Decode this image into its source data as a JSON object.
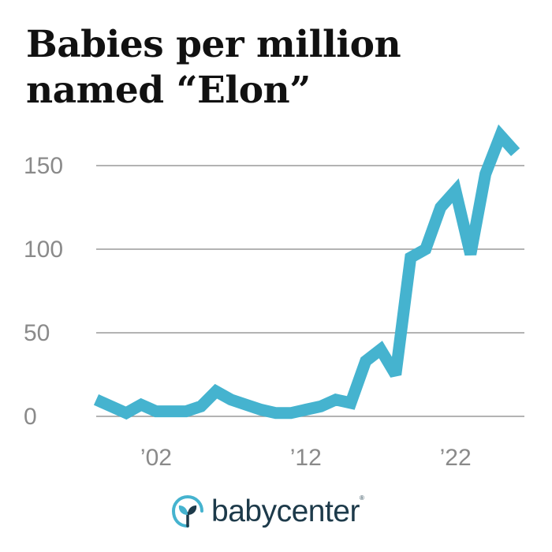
{
  "colors": {
    "line": "#45b3cf",
    "grid": "#9a9a9a",
    "logo_teal": "#45b3cf",
    "logo_text": "#1d3a4a"
  },
  "chart_data": {
    "type": "line",
    "title": "Babies per million named “Elon”",
    "title_lines": [
      "Babies per million",
      "named “Elon”"
    ],
    "xlabel": "",
    "ylabel": "",
    "x": [
      1998,
      1999,
      2000,
      2001,
      2002,
      2003,
      2004,
      2005,
      2006,
      2007,
      2008,
      2009,
      2010,
      2011,
      2012,
      2013,
      2014,
      2015,
      2016,
      2017,
      2018,
      2019,
      2020,
      2021,
      2022,
      2023,
      2024,
      2025,
      2026
    ],
    "y": [
      10,
      6,
      2,
      7,
      3,
      3,
      3,
      6,
      15,
      10,
      7,
      4,
      2,
      2,
      4,
      6,
      10,
      8,
      33,
      40,
      25,
      95,
      100,
      125,
      135,
      97,
      145,
      168,
      158
    ],
    "ylim": [
      0,
      175
    ],
    "xlim": [
      1998,
      2026.6
    ],
    "yticks": [
      0,
      50,
      100,
      150
    ],
    "ytick_labels": [
      "0",
      "50",
      "100",
      "150"
    ],
    "xticks": [
      2002,
      2012,
      2022
    ],
    "xtick_labels": [
      "’02",
      "’12",
      "’22"
    ],
    "grid": true,
    "legend": "none"
  },
  "logo": {
    "text": "babycenter",
    "mark": "®",
    "icon": "sprout-in-circle-icon"
  }
}
